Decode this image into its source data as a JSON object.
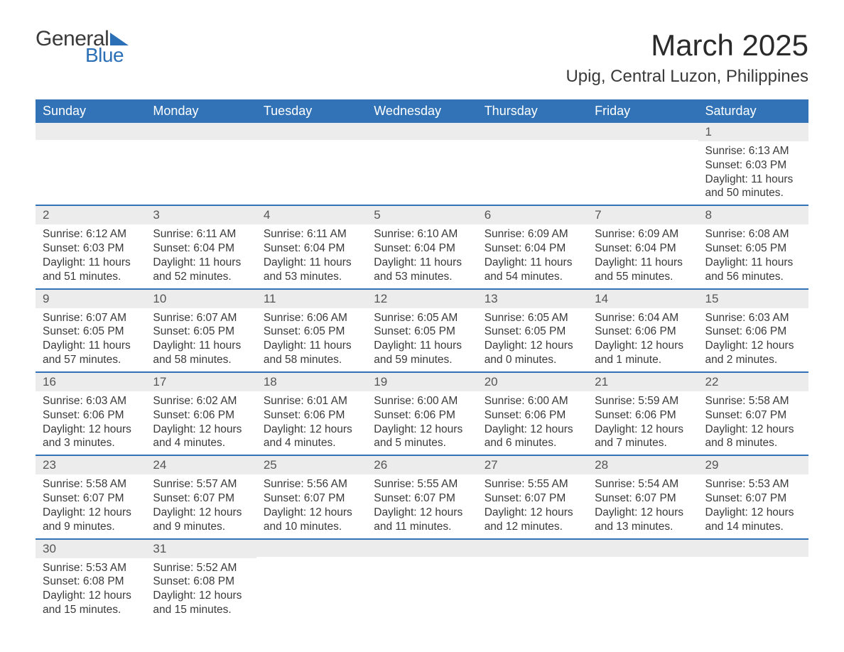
{
  "logo": {
    "text1": "General",
    "text2": "Blue"
  },
  "title": "March 2025",
  "location": "Upig, Central Luzon, Philippines",
  "colors": {
    "header_bg": "#3173b6",
    "header_text": "#ffffff",
    "daynum_bg": "#ececec",
    "row_border": "#3173b6",
    "body_text": "#3a3a3a",
    "logo_accent": "#2b70b6"
  },
  "day_headers": [
    "Sunday",
    "Monday",
    "Tuesday",
    "Wednesday",
    "Thursday",
    "Friday",
    "Saturday"
  ],
  "weeks": [
    [
      {
        "day": "",
        "sunrise": "",
        "sunset": "",
        "daylight": ""
      },
      {
        "day": "",
        "sunrise": "",
        "sunset": "",
        "daylight": ""
      },
      {
        "day": "",
        "sunrise": "",
        "sunset": "",
        "daylight": ""
      },
      {
        "day": "",
        "sunrise": "",
        "sunset": "",
        "daylight": ""
      },
      {
        "day": "",
        "sunrise": "",
        "sunset": "",
        "daylight": ""
      },
      {
        "day": "",
        "sunrise": "",
        "sunset": "",
        "daylight": ""
      },
      {
        "day": "1",
        "sunrise": "Sunrise: 6:13 AM",
        "sunset": "Sunset: 6:03 PM",
        "daylight": "Daylight: 11 hours and 50 minutes."
      }
    ],
    [
      {
        "day": "2",
        "sunrise": "Sunrise: 6:12 AM",
        "sunset": "Sunset: 6:03 PM",
        "daylight": "Daylight: 11 hours and 51 minutes."
      },
      {
        "day": "3",
        "sunrise": "Sunrise: 6:11 AM",
        "sunset": "Sunset: 6:04 PM",
        "daylight": "Daylight: 11 hours and 52 minutes."
      },
      {
        "day": "4",
        "sunrise": "Sunrise: 6:11 AM",
        "sunset": "Sunset: 6:04 PM",
        "daylight": "Daylight: 11 hours and 53 minutes."
      },
      {
        "day": "5",
        "sunrise": "Sunrise: 6:10 AM",
        "sunset": "Sunset: 6:04 PM",
        "daylight": "Daylight: 11 hours and 53 minutes."
      },
      {
        "day": "6",
        "sunrise": "Sunrise: 6:09 AM",
        "sunset": "Sunset: 6:04 PM",
        "daylight": "Daylight: 11 hours and 54 minutes."
      },
      {
        "day": "7",
        "sunrise": "Sunrise: 6:09 AM",
        "sunset": "Sunset: 6:04 PM",
        "daylight": "Daylight: 11 hours and 55 minutes."
      },
      {
        "day": "8",
        "sunrise": "Sunrise: 6:08 AM",
        "sunset": "Sunset: 6:05 PM",
        "daylight": "Daylight: 11 hours and 56 minutes."
      }
    ],
    [
      {
        "day": "9",
        "sunrise": "Sunrise: 6:07 AM",
        "sunset": "Sunset: 6:05 PM",
        "daylight": "Daylight: 11 hours and 57 minutes."
      },
      {
        "day": "10",
        "sunrise": "Sunrise: 6:07 AM",
        "sunset": "Sunset: 6:05 PM",
        "daylight": "Daylight: 11 hours and 58 minutes."
      },
      {
        "day": "11",
        "sunrise": "Sunrise: 6:06 AM",
        "sunset": "Sunset: 6:05 PM",
        "daylight": "Daylight: 11 hours and 58 minutes."
      },
      {
        "day": "12",
        "sunrise": "Sunrise: 6:05 AM",
        "sunset": "Sunset: 6:05 PM",
        "daylight": "Daylight: 11 hours and 59 minutes."
      },
      {
        "day": "13",
        "sunrise": "Sunrise: 6:05 AM",
        "sunset": "Sunset: 6:05 PM",
        "daylight": "Daylight: 12 hours and 0 minutes."
      },
      {
        "day": "14",
        "sunrise": "Sunrise: 6:04 AM",
        "sunset": "Sunset: 6:06 PM",
        "daylight": "Daylight: 12 hours and 1 minute."
      },
      {
        "day": "15",
        "sunrise": "Sunrise: 6:03 AM",
        "sunset": "Sunset: 6:06 PM",
        "daylight": "Daylight: 12 hours and 2 minutes."
      }
    ],
    [
      {
        "day": "16",
        "sunrise": "Sunrise: 6:03 AM",
        "sunset": "Sunset: 6:06 PM",
        "daylight": "Daylight: 12 hours and 3 minutes."
      },
      {
        "day": "17",
        "sunrise": "Sunrise: 6:02 AM",
        "sunset": "Sunset: 6:06 PM",
        "daylight": "Daylight: 12 hours and 4 minutes."
      },
      {
        "day": "18",
        "sunrise": "Sunrise: 6:01 AM",
        "sunset": "Sunset: 6:06 PM",
        "daylight": "Daylight: 12 hours and 4 minutes."
      },
      {
        "day": "19",
        "sunrise": "Sunrise: 6:00 AM",
        "sunset": "Sunset: 6:06 PM",
        "daylight": "Daylight: 12 hours and 5 minutes."
      },
      {
        "day": "20",
        "sunrise": "Sunrise: 6:00 AM",
        "sunset": "Sunset: 6:06 PM",
        "daylight": "Daylight: 12 hours and 6 minutes."
      },
      {
        "day": "21",
        "sunrise": "Sunrise: 5:59 AM",
        "sunset": "Sunset: 6:06 PM",
        "daylight": "Daylight: 12 hours and 7 minutes."
      },
      {
        "day": "22",
        "sunrise": "Sunrise: 5:58 AM",
        "sunset": "Sunset: 6:07 PM",
        "daylight": "Daylight: 12 hours and 8 minutes."
      }
    ],
    [
      {
        "day": "23",
        "sunrise": "Sunrise: 5:58 AM",
        "sunset": "Sunset: 6:07 PM",
        "daylight": "Daylight: 12 hours and 9 minutes."
      },
      {
        "day": "24",
        "sunrise": "Sunrise: 5:57 AM",
        "sunset": "Sunset: 6:07 PM",
        "daylight": "Daylight: 12 hours and 9 minutes."
      },
      {
        "day": "25",
        "sunrise": "Sunrise: 5:56 AM",
        "sunset": "Sunset: 6:07 PM",
        "daylight": "Daylight: 12 hours and 10 minutes."
      },
      {
        "day": "26",
        "sunrise": "Sunrise: 5:55 AM",
        "sunset": "Sunset: 6:07 PM",
        "daylight": "Daylight: 12 hours and 11 minutes."
      },
      {
        "day": "27",
        "sunrise": "Sunrise: 5:55 AM",
        "sunset": "Sunset: 6:07 PM",
        "daylight": "Daylight: 12 hours and 12 minutes."
      },
      {
        "day": "28",
        "sunrise": "Sunrise: 5:54 AM",
        "sunset": "Sunset: 6:07 PM",
        "daylight": "Daylight: 12 hours and 13 minutes."
      },
      {
        "day": "29",
        "sunrise": "Sunrise: 5:53 AM",
        "sunset": "Sunset: 6:07 PM",
        "daylight": "Daylight: 12 hours and 14 minutes."
      }
    ],
    [
      {
        "day": "30",
        "sunrise": "Sunrise: 5:53 AM",
        "sunset": "Sunset: 6:08 PM",
        "daylight": "Daylight: 12 hours and 15 minutes."
      },
      {
        "day": "31",
        "sunrise": "Sunrise: 5:52 AM",
        "sunset": "Sunset: 6:08 PM",
        "daylight": "Daylight: 12 hours and 15 minutes."
      },
      {
        "day": "",
        "sunrise": "",
        "sunset": "",
        "daylight": ""
      },
      {
        "day": "",
        "sunrise": "",
        "sunset": "",
        "daylight": ""
      },
      {
        "day": "",
        "sunrise": "",
        "sunset": "",
        "daylight": ""
      },
      {
        "day": "",
        "sunrise": "",
        "sunset": "",
        "daylight": ""
      },
      {
        "day": "",
        "sunrise": "",
        "sunset": "",
        "daylight": ""
      }
    ]
  ]
}
